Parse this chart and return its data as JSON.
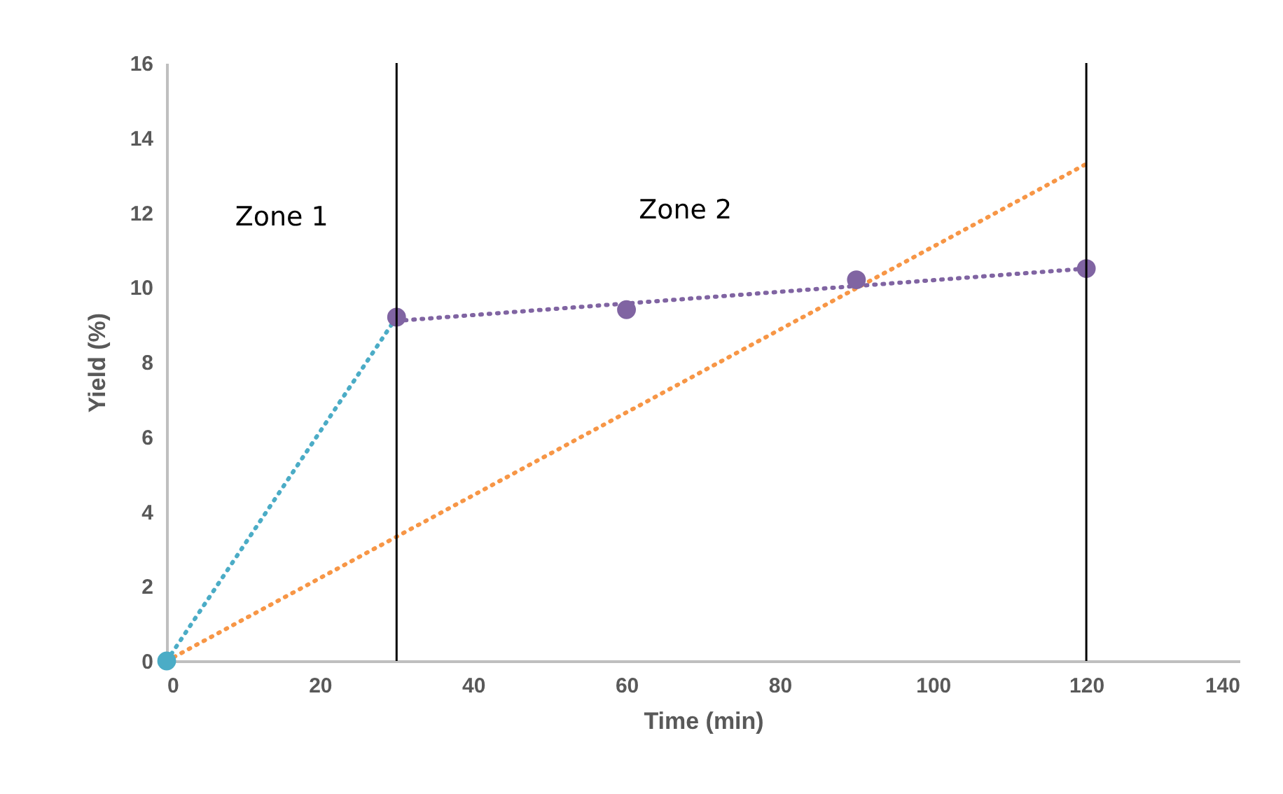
{
  "chart_data": {
    "type": "line",
    "xlabel": "Time (min)",
    "ylabel": "Yield (%)",
    "xlim": [
      0,
      140
    ],
    "xticks": [
      0,
      20,
      40,
      60,
      80,
      100,
      120,
      140
    ],
    "ylim": [
      0,
      16
    ],
    "yticks": [
      0,
      2,
      4,
      6,
      8,
      10,
      12,
      14,
      16
    ],
    "grid": false,
    "series": [
      {
        "type": "line",
        "color": "#4bacc6",
        "x": [
          0,
          30
        ],
        "values": [
          0,
          9.2
        ],
        "line_style": "dotted",
        "marker": "none"
      },
      {
        "type": "line",
        "color": "#f79646",
        "x": [
          0,
          120
        ],
        "values": [
          0,
          13.3
        ],
        "line_style": "dotted",
        "marker": "none"
      },
      {
        "type": "line",
        "color": "#8064a2",
        "x": [
          30,
          120
        ],
        "values": [
          9.1,
          10.5
        ],
        "line_style": "dotted",
        "marker": "none"
      },
      {
        "type": "scatter",
        "color": "#4bacc6",
        "x": [
          0
        ],
        "values": [
          0
        ],
        "marker": "circle"
      },
      {
        "type": "scatter",
        "color": "#8064a2",
        "x": [
          30,
          60,
          90,
          120
        ],
        "values": [
          9.2,
          9.4,
          10.2,
          10.5
        ],
        "marker": "circle"
      }
    ],
    "ref_lines": [
      {
        "axis": "x",
        "value": 30,
        "color": "#000000",
        "line_style": "solid"
      },
      {
        "axis": "x",
        "value": 120,
        "color": "#000000",
        "line_style": "solid"
      }
    ],
    "annotations": [
      "Zone 1",
      "Zone 2"
    ]
  }
}
